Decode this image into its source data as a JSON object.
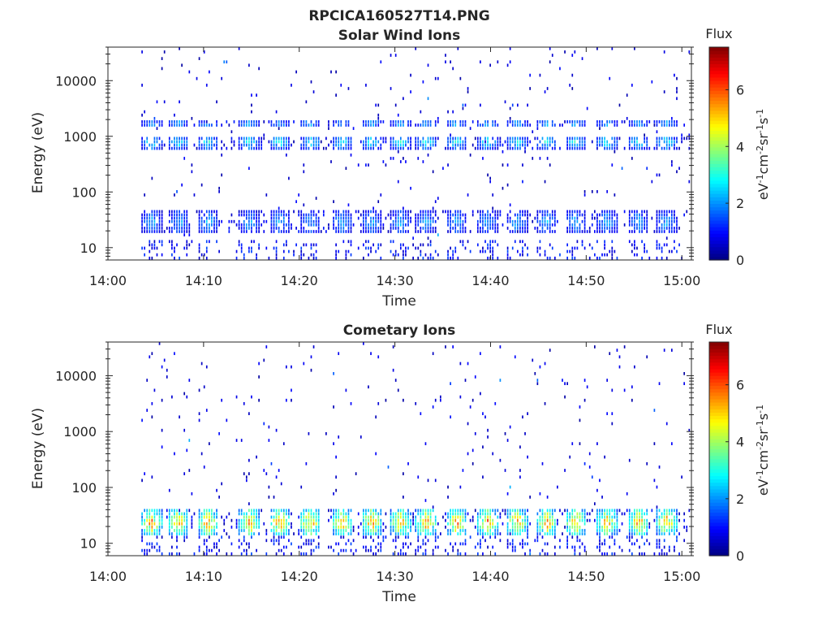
{
  "figure": {
    "title": "RPCICA160527T14.PNG"
  },
  "chart_data": [
    {
      "type": "heatmap",
      "title": "Solar Wind Ions",
      "xlabel": "Time",
      "ylabel": "Energy (eV)",
      "x_ticks": [
        "14:00",
        "14:10",
        "14:20",
        "14:30",
        "14:40",
        "14:50",
        "15:00"
      ],
      "x_range_minutes": [
        0,
        61
      ],
      "y_scale": "log",
      "y_ticks": [
        "10",
        "100",
        "1000",
        "10000"
      ],
      "y_range": [
        6,
        40000
      ],
      "colorbar": {
        "label": "Flux",
        "units": "eV-1cm-2sr-1s-1",
        "range": [
          0,
          7.5
        ],
        "ticks": [
          "0",
          "2",
          "4",
          "6"
        ],
        "colormap": "jet"
      },
      "data_start_minute": 3.5,
      "data_end_minute": 60.8,
      "pulse_times_min": [
        4.5,
        7.3,
        10.4,
        14.7,
        17.9,
        21.1,
        24.4,
        27.5,
        30.5,
        33.2,
        36.4,
        39.6,
        42.7,
        45.8,
        48.8,
        52.1,
        55.4,
        58.3
      ],
      "bands": [
        {
          "energy_low": 18,
          "energy_high": 45,
          "peak_flux": 2.3
        },
        {
          "energy_low": 600,
          "energy_high": 1000,
          "peak_flux": 3.0
        },
        {
          "energy_low": 1400,
          "energy_high": 2000,
          "peak_flux": 2.4
        }
      ]
    },
    {
      "type": "heatmap",
      "title": "Cometary Ions",
      "xlabel": "Time",
      "ylabel": "Energy (eV)",
      "x_ticks": [
        "14:00",
        "14:10",
        "14:20",
        "14:30",
        "14:40",
        "14:50",
        "15:00"
      ],
      "x_range_minutes": [
        0,
        61
      ],
      "y_scale": "log",
      "y_ticks": [
        "10",
        "100",
        "1000",
        "10000"
      ],
      "y_range": [
        6,
        40000
      ],
      "colorbar": {
        "label": "Flux",
        "units": "eV-1cm-2sr-1s-1",
        "range": [
          0,
          7.5
        ],
        "ticks": [
          "0",
          "2",
          "4",
          "6"
        ],
        "colormap": "jet"
      },
      "data_start_minute": 3.5,
      "data_end_minute": 60.8,
      "pulse_times_min": [
        4.5,
        7.3,
        10.4,
        14.7,
        17.9,
        21.1,
        24.4,
        27.5,
        30.5,
        33.2,
        36.4,
        39.6,
        42.7,
        45.8,
        48.8,
        52.1,
        55.4,
        58.3
      ],
      "bands": [
        {
          "energy_low": 14,
          "energy_high": 40,
          "peak_flux": 5.6
        }
      ]
    }
  ]
}
